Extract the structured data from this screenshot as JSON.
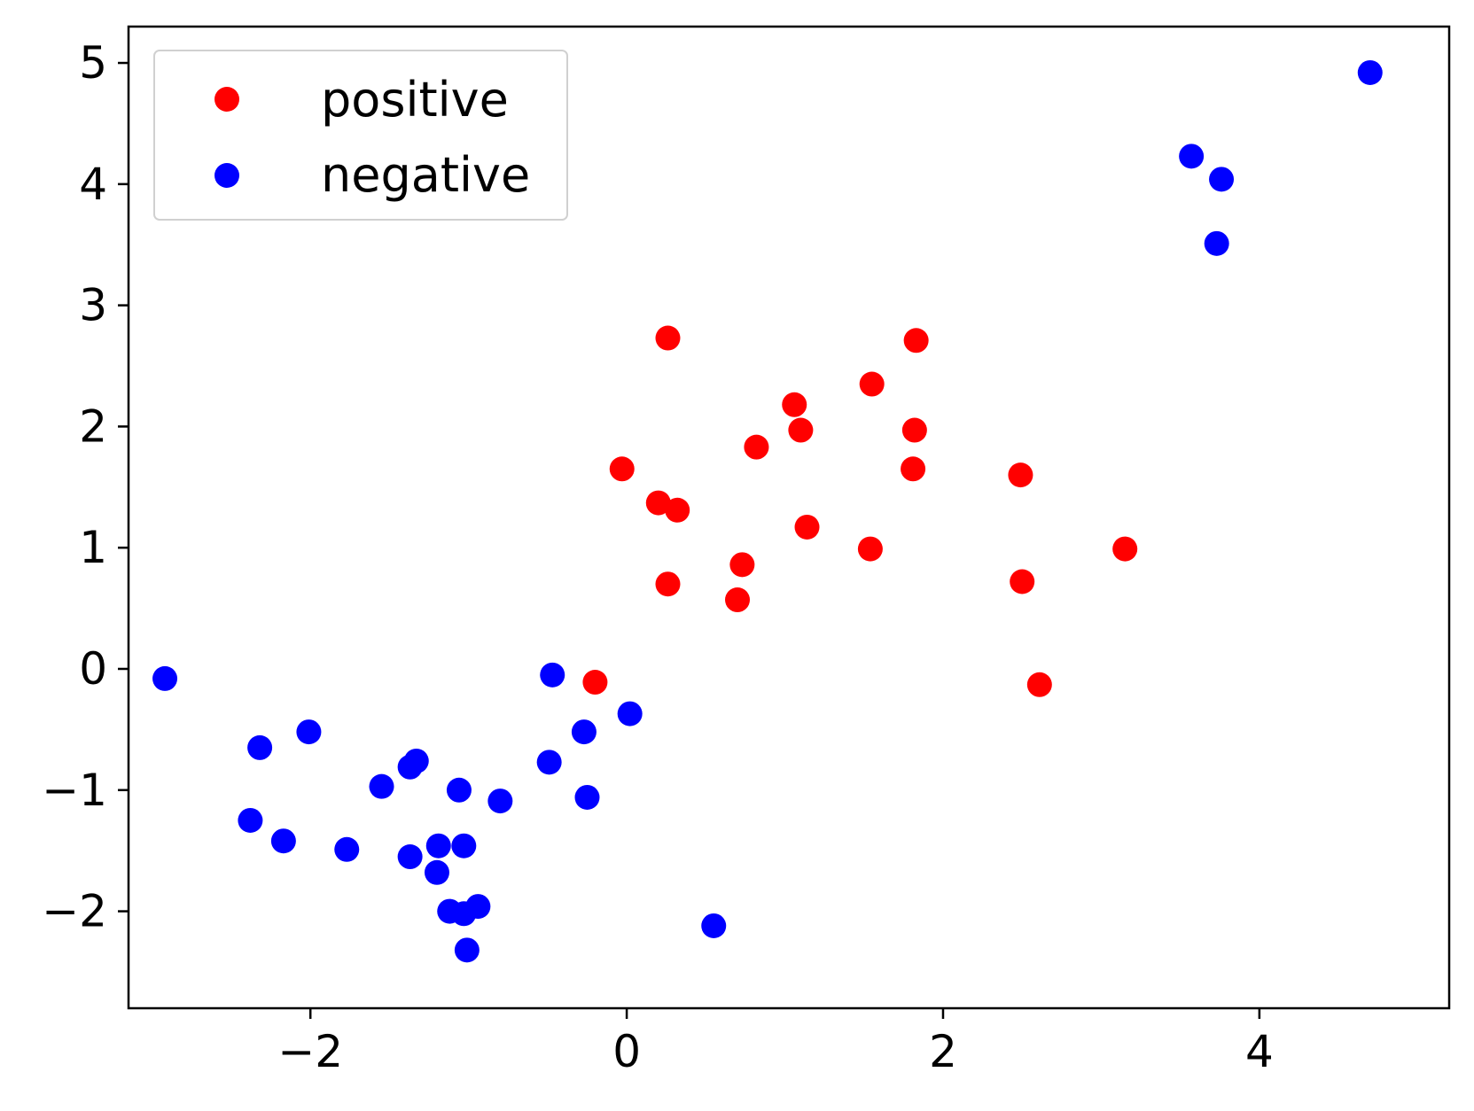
{
  "chart_data": {
    "type": "scatter",
    "title": "",
    "xlabel": "",
    "ylabel": "",
    "xlim": [
      -3.15,
      5.2
    ],
    "ylim": [
      -2.8,
      5.3
    ],
    "grid": false,
    "legend_position": "top-left",
    "x_ticks": [
      {
        "value": -2,
        "label": "−2"
      },
      {
        "value": 0,
        "label": "0"
      },
      {
        "value": 2,
        "label": "2"
      },
      {
        "value": 4,
        "label": "4"
      }
    ],
    "y_ticks": [
      {
        "value": -2,
        "label": "−2"
      },
      {
        "value": -1,
        "label": "−1"
      },
      {
        "value": 0,
        "label": "0"
      },
      {
        "value": 1,
        "label": "1"
      },
      {
        "value": 2,
        "label": "2"
      },
      {
        "value": 3,
        "label": "3"
      },
      {
        "value": 4,
        "label": "4"
      },
      {
        "value": 5,
        "label": "5"
      }
    ],
    "series": [
      {
        "name": "positive",
        "color": "#ff0000",
        "points": [
          [
            0.26,
            2.73
          ],
          [
            1.83,
            2.71
          ],
          [
            1.55,
            2.35
          ],
          [
            1.06,
            2.18
          ],
          [
            1.1,
            1.97
          ],
          [
            1.82,
            1.97
          ],
          [
            0.82,
            1.83
          ],
          [
            -0.03,
            1.65
          ],
          [
            1.81,
            1.65
          ],
          [
            2.49,
            1.6
          ],
          [
            0.2,
            1.37
          ],
          [
            0.32,
            1.31
          ],
          [
            1.14,
            1.17
          ],
          [
            1.54,
            0.99
          ],
          [
            3.15,
            0.99
          ],
          [
            0.73,
            0.86
          ],
          [
            0.26,
            0.7
          ],
          [
            2.5,
            0.72
          ],
          [
            0.7,
            0.57
          ],
          [
            -0.2,
            -0.11
          ],
          [
            2.61,
            -0.13
          ]
        ]
      },
      {
        "name": "negative",
        "color": "#0000ff",
        "points": [
          [
            4.7,
            4.92
          ],
          [
            3.57,
            4.23
          ],
          [
            3.76,
            4.04
          ],
          [
            3.73,
            3.51
          ],
          [
            -2.92,
            -0.08
          ],
          [
            -0.47,
            -0.05
          ],
          [
            0.02,
            -0.37
          ],
          [
            -2.32,
            -0.65
          ],
          [
            -2.01,
            -0.52
          ],
          [
            -0.27,
            -0.52
          ],
          [
            -1.33,
            -0.76
          ],
          [
            -1.37,
            -0.81
          ],
          [
            -0.49,
            -0.77
          ],
          [
            -1.55,
            -0.97
          ],
          [
            -1.06,
            -1.0
          ],
          [
            -0.8,
            -1.09
          ],
          [
            -0.25,
            -1.06
          ],
          [
            -2.38,
            -1.25
          ],
          [
            -2.17,
            -1.42
          ],
          [
            -1.77,
            -1.49
          ],
          [
            -1.19,
            -1.46
          ],
          [
            -1.03,
            -1.46
          ],
          [
            -1.37,
            -1.55
          ],
          [
            -1.2,
            -1.68
          ],
          [
            -1.12,
            -2.0
          ],
          [
            -1.03,
            -2.02
          ],
          [
            -0.94,
            -1.96
          ],
          [
            -1.01,
            -2.32
          ],
          [
            0.55,
            -2.12
          ]
        ]
      }
    ]
  }
}
